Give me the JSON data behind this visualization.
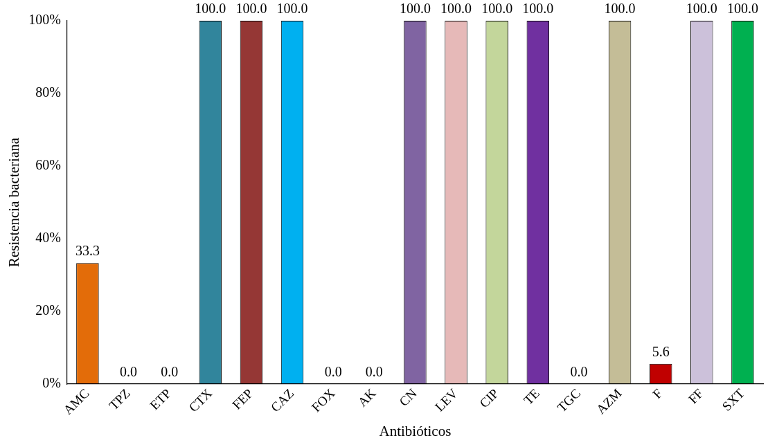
{
  "chart_data": {
    "type": "bar",
    "xlabel": "Antibióticos",
    "ylabel": "Resistencia bacteriana",
    "categories": [
      "AMC",
      "TPZ",
      "ETP",
      "CTX",
      "FEP",
      "CAZ",
      "FOX",
      "AK",
      "CN",
      "LEV",
      "CIP",
      "TE",
      "TGC",
      "AZM",
      "F",
      "FF",
      "SXT"
    ],
    "values": [
      33.3,
      0,
      0,
      100,
      100,
      100,
      0,
      0,
      100,
      100,
      100,
      100,
      0,
      100,
      5.6,
      100,
      100
    ],
    "value_labels": [
      "33.3",
      "0.0",
      "0.0",
      "100.0",
      "100.0",
      "100.0",
      "0.0",
      "0.0",
      "100.0",
      "100.0",
      "100.0",
      "100.0",
      "0.0",
      "100.0",
      "5.6",
      "100.0",
      "100.0"
    ],
    "colors": [
      "#e36c09",
      "#808080",
      "#808080",
      "#31859c",
      "#953735",
      "#00b0f0",
      "#808080",
      "#808080",
      "#8064a2",
      "#e6b9b8",
      "#c3d69b",
      "#7030a0",
      "#808080",
      "#c4bd97",
      "#c00000",
      "#ccc1da",
      "#00b050"
    ],
    "ylim": [
      0,
      100
    ],
    "yticks": [
      {
        "value": 0,
        "label": "0%"
      },
      {
        "value": 20,
        "label": "20%"
      },
      {
        "value": 40,
        "label": "40%"
      },
      {
        "value": 60,
        "label": "60%"
      },
      {
        "value": 80,
        "label": "80%"
      },
      {
        "value": 100,
        "label": "100%"
      }
    ],
    "grid": false,
    "legend": false
  }
}
